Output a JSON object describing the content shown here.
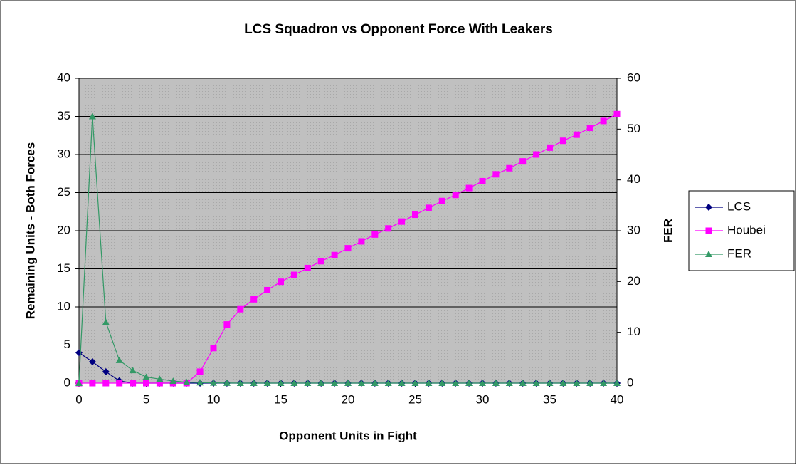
{
  "chart_data": {
    "type": "line",
    "title": "LCS Squadron vs Opponent Force With Leakers",
    "x_label": "Opponent Units in Fight",
    "y_label": "Remaining Units - Both Forces",
    "y2_label": "FER",
    "x": [
      0,
      1,
      2,
      3,
      4,
      5,
      6,
      7,
      8,
      9,
      10,
      11,
      12,
      13,
      14,
      15,
      16,
      17,
      18,
      19,
      20,
      21,
      22,
      23,
      24,
      25,
      26,
      27,
      28,
      29,
      30,
      31,
      32,
      33,
      34,
      35,
      36,
      37,
      38,
      39,
      40
    ],
    "xlim": [
      0,
      40
    ],
    "xticks": [
      0,
      5,
      10,
      15,
      20,
      25,
      30,
      35,
      40
    ],
    "ylim": [
      0,
      40
    ],
    "yticks": [
      0,
      5,
      10,
      15,
      20,
      25,
      30,
      35,
      40
    ],
    "y2lim": [
      0,
      60
    ],
    "y2ticks": [
      0,
      10,
      20,
      30,
      40,
      50,
      60
    ],
    "grid": true,
    "legend": "right",
    "series": [
      {
        "name": "LCS",
        "color": "#000080",
        "marker": "diamond",
        "values": [
          4,
          2.8,
          1.5,
          0.3,
          0,
          0,
          0,
          0,
          0,
          0,
          0,
          0,
          0,
          0,
          0,
          0,
          0,
          0,
          0,
          0,
          0,
          0,
          0,
          0,
          0,
          0,
          0,
          0,
          0,
          0,
          0,
          0,
          0,
          0,
          0,
          0,
          0,
          0,
          0,
          0,
          0
        ]
      },
      {
        "name": "Houbei",
        "color": "#ff00ff",
        "marker": "square",
        "values": [
          0,
          0,
          0,
          0,
          0,
          0,
          0,
          0,
          0,
          1.5,
          4.6,
          7.7,
          9.7,
          11,
          12.2,
          13.3,
          14.2,
          15.1,
          16.0,
          16.8,
          17.7,
          18.6,
          19.5,
          20.3,
          21.2,
          22.1,
          23.0,
          23.9,
          24.7,
          25.6,
          26.5,
          27.4,
          28.2,
          29.1,
          30.0,
          30.9,
          31.8,
          32.6,
          33.5,
          34.4,
          35.3
        ]
      },
      {
        "name": "FER",
        "color": "#339966",
        "marker": "triangle",
        "axis": "y2",
        "values": [
          0,
          52.5,
          12,
          4.5,
          2.5,
          1.2,
          0.8,
          0.4,
          0.2,
          0.1,
          0.05,
          0.02,
          0,
          0,
          0,
          0,
          0,
          0,
          0,
          0,
          0,
          0,
          0,
          0,
          0,
          0,
          0,
          0,
          0,
          0,
          0,
          0,
          0,
          0,
          0,
          0,
          0,
          0,
          0,
          0,
          0
        ]
      }
    ]
  }
}
